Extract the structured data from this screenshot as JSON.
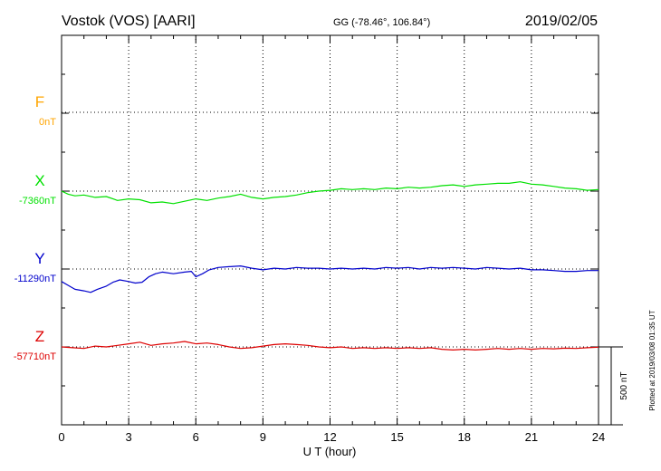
{
  "header": {
    "station": "Vostok (VOS)  [AARI]",
    "coords": "GG (-78.46°, 106.84°)",
    "date": "2019/02/05"
  },
  "footer": {
    "plotted": "Plotted at 2019/03/08 01:35 UT",
    "scale_label": "500 nT"
  },
  "colors": {
    "F": "#ffa500",
    "X": "#00e000",
    "Y": "#0000cc",
    "Z": "#dd0000",
    "axis": "#000000",
    "grid": "#000000"
  },
  "chart_data": {
    "type": "line",
    "xlabel": "U T (hour)",
    "xlim": [
      0,
      24
    ],
    "xticks": [
      "0",
      "3",
      "6",
      "9",
      "12",
      "15",
      "18",
      "21",
      "24"
    ],
    "grid": true,
    "scale_bar_nT": 500,
    "series": [
      {
        "name": "F",
        "baseline_label": "0nT",
        "baseline_nT": 0,
        "points": []
      },
      {
        "name": "X",
        "baseline_label": "-7360nT",
        "baseline_nT": -7360,
        "points": [
          [
            0,
            -7360
          ],
          [
            0.3,
            -7380
          ],
          [
            0.6,
            -7390
          ],
          [
            1.0,
            -7385
          ],
          [
            1.5,
            -7400
          ],
          [
            2.0,
            -7395
          ],
          [
            2.5,
            -7420
          ],
          [
            3.0,
            -7410
          ],
          [
            3.5,
            -7415
          ],
          [
            4.0,
            -7435
          ],
          [
            4.5,
            -7430
          ],
          [
            5.0,
            -7440
          ],
          [
            5.5,
            -7425
          ],
          [
            6.0,
            -7410
          ],
          [
            6.5,
            -7420
          ],
          [
            7.0,
            -7405
          ],
          [
            7.5,
            -7395
          ],
          [
            8.0,
            -7380
          ],
          [
            8.5,
            -7400
          ],
          [
            9.0,
            -7410
          ],
          [
            9.5,
            -7400
          ],
          [
            10.0,
            -7395
          ],
          [
            10.5,
            -7385
          ],
          [
            11.0,
            -7370
          ],
          [
            11.5,
            -7360
          ],
          [
            12.0,
            -7355
          ],
          [
            12.5,
            -7345
          ],
          [
            13.0,
            -7350
          ],
          [
            13.5,
            -7345
          ],
          [
            14.0,
            -7350
          ],
          [
            14.5,
            -7340
          ],
          [
            15.0,
            -7345
          ],
          [
            15.5,
            -7335
          ],
          [
            16.0,
            -7340
          ],
          [
            16.5,
            -7335
          ],
          [
            17.0,
            -7325
          ],
          [
            17.5,
            -7320
          ],
          [
            18.0,
            -7330
          ],
          [
            18.5,
            -7320
          ],
          [
            19.0,
            -7315
          ],
          [
            19.5,
            -7310
          ],
          [
            20.0,
            -7310
          ],
          [
            20.5,
            -7300
          ],
          [
            21.0,
            -7315
          ],
          [
            21.5,
            -7320
          ],
          [
            22.0,
            -7330
          ],
          [
            22.5,
            -7340
          ],
          [
            23.0,
            -7345
          ],
          [
            23.5,
            -7355
          ],
          [
            24.0,
            -7350
          ]
        ]
      },
      {
        "name": "Y",
        "baseline_label": "-11290nT",
        "baseline_nT": -11290,
        "points": [
          [
            0,
            -11370
          ],
          [
            0.3,
            -11395
          ],
          [
            0.6,
            -11420
          ],
          [
            1.0,
            -11430
          ],
          [
            1.3,
            -11440
          ],
          [
            1.6,
            -11420
          ],
          [
            2.0,
            -11400
          ],
          [
            2.3,
            -11375
          ],
          [
            2.6,
            -11360
          ],
          [
            3.0,
            -11370
          ],
          [
            3.3,
            -11380
          ],
          [
            3.6,
            -11375
          ],
          [
            3.9,
            -11340
          ],
          [
            4.2,
            -11320
          ],
          [
            4.5,
            -11310
          ],
          [
            5.0,
            -11320
          ],
          [
            5.5,
            -11310
          ],
          [
            5.8,
            -11305
          ],
          [
            6.0,
            -11340
          ],
          [
            6.3,
            -11320
          ],
          [
            6.6,
            -11295
          ],
          [
            7.0,
            -11280
          ],
          [
            7.5,
            -11275
          ],
          [
            8.0,
            -11270
          ],
          [
            8.5,
            -11285
          ],
          [
            9.0,
            -11295
          ],
          [
            9.5,
            -11285
          ],
          [
            10.0,
            -11290
          ],
          [
            10.5,
            -11280
          ],
          [
            11.0,
            -11285
          ],
          [
            11.5,
            -11285
          ],
          [
            12.0,
            -11290
          ],
          [
            12.5,
            -11285
          ],
          [
            13.0,
            -11290
          ],
          [
            13.5,
            -11285
          ],
          [
            14.0,
            -11290
          ],
          [
            14.5,
            -11280
          ],
          [
            15.0,
            -11285
          ],
          [
            15.5,
            -11280
          ],
          [
            16.0,
            -11290
          ],
          [
            16.5,
            -11280
          ],
          [
            17.0,
            -11285
          ],
          [
            17.5,
            -11280
          ],
          [
            18.0,
            -11285
          ],
          [
            18.5,
            -11290
          ],
          [
            19.0,
            -11280
          ],
          [
            19.5,
            -11285
          ],
          [
            20.0,
            -11290
          ],
          [
            20.5,
            -11285
          ],
          [
            21.0,
            -11295
          ],
          [
            21.5,
            -11295
          ],
          [
            22.0,
            -11300
          ],
          [
            22.5,
            -11305
          ],
          [
            23.0,
            -11305
          ],
          [
            23.5,
            -11300
          ],
          [
            24.0,
            -11300
          ]
        ]
      },
      {
        "name": "Z",
        "baseline_label": "-57710nT",
        "baseline_nT": -57710,
        "points": [
          [
            0,
            -57710
          ],
          [
            0.5,
            -57715
          ],
          [
            1.0,
            -57720
          ],
          [
            1.5,
            -57705
          ],
          [
            2.0,
            -57710
          ],
          [
            2.5,
            -57700
          ],
          [
            3.0,
            -57690
          ],
          [
            3.5,
            -57680
          ],
          [
            4.0,
            -57700
          ],
          [
            4.5,
            -57690
          ],
          [
            5.0,
            -57685
          ],
          [
            5.5,
            -57675
          ],
          [
            6.0,
            -57690
          ],
          [
            6.5,
            -57685
          ],
          [
            7.0,
            -57695
          ],
          [
            7.5,
            -57710
          ],
          [
            8.0,
            -57720
          ],
          [
            8.5,
            -57715
          ],
          [
            9.0,
            -57705
          ],
          [
            9.5,
            -57695
          ],
          [
            10.0,
            -57690
          ],
          [
            10.5,
            -57695
          ],
          [
            11.0,
            -57700
          ],
          [
            11.5,
            -57710
          ],
          [
            12.0,
            -57715
          ],
          [
            12.5,
            -57710
          ],
          [
            13.0,
            -57720
          ],
          [
            13.5,
            -57715
          ],
          [
            14.0,
            -57720
          ],
          [
            14.5,
            -57715
          ],
          [
            15.0,
            -57720
          ],
          [
            15.5,
            -57715
          ],
          [
            16.0,
            -57720
          ],
          [
            16.5,
            -57715
          ],
          [
            17.0,
            -57725
          ],
          [
            17.5,
            -57730
          ],
          [
            18.0,
            -57725
          ],
          [
            18.5,
            -57730
          ],
          [
            19.0,
            -57725
          ],
          [
            19.5,
            -57720
          ],
          [
            20.0,
            -57725
          ],
          [
            20.5,
            -57720
          ],
          [
            21.0,
            -57725
          ],
          [
            21.5,
            -57720
          ],
          [
            22.0,
            -57722
          ],
          [
            22.5,
            -57718
          ],
          [
            23.0,
            -57720
          ],
          [
            23.5,
            -57715
          ],
          [
            24.0,
            -57712
          ]
        ]
      }
    ]
  }
}
